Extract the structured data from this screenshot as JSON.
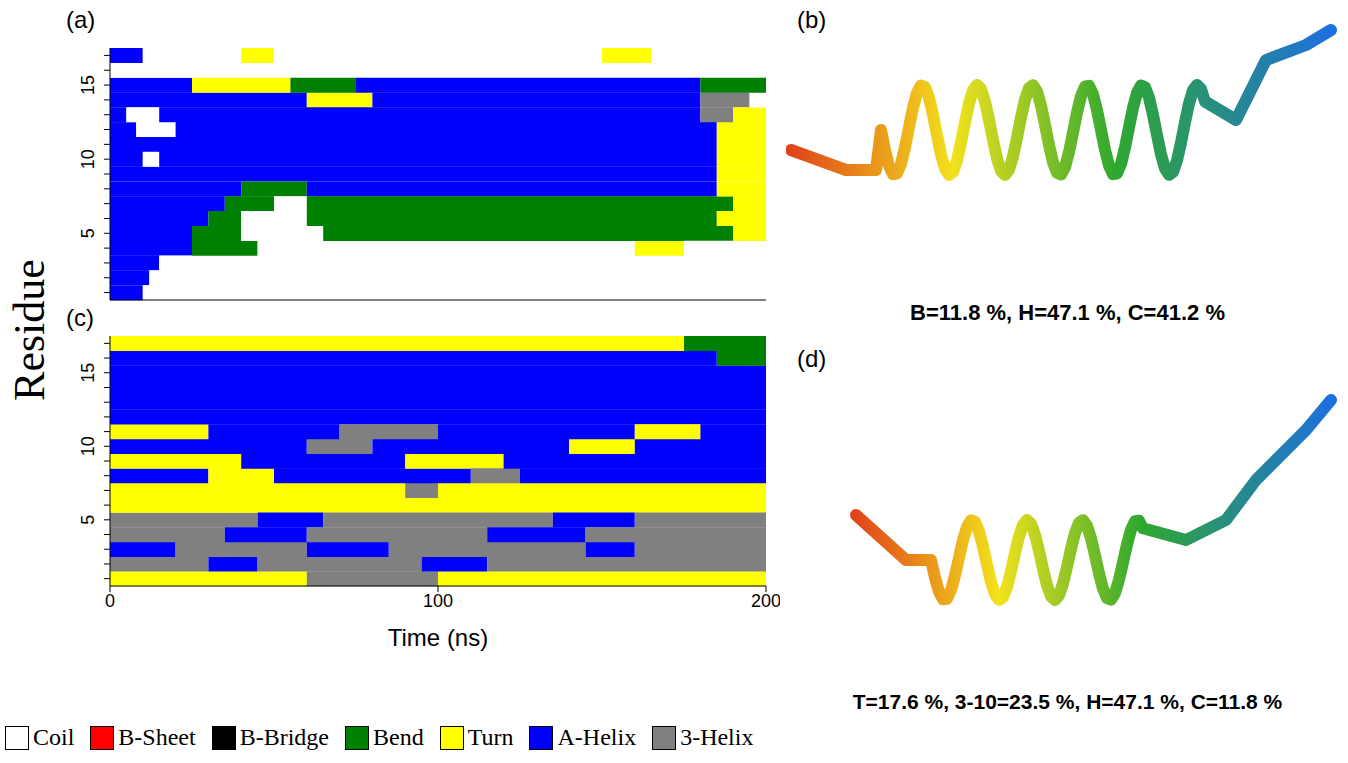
{
  "figure": {
    "y_label": "Residue",
    "x_label": "Time (ns)",
    "legend_items": [
      {
        "name": "Coil",
        "color": "#ffffff"
      },
      {
        "name": "B-Sheet",
        "color": "#ff0000"
      },
      {
        "name": "B-Bridge",
        "color": "#000000"
      },
      {
        "name": "Bend",
        "color": "#008000"
      },
      {
        "name": "Turn",
        "color": "#ffff00"
      },
      {
        "name": "A-Helix",
        "color": "#0000ff"
      },
      {
        "name": "3-Helix",
        "color": "#808080"
      }
    ]
  },
  "chart_data": [
    {
      "panel": "(a)",
      "type": "bar",
      "orientation": "horizontal",
      "stacked": true,
      "tick_labels": "y",
      "xlim": [
        0,
        200
      ],
      "categories": [
        null,
        null,
        null,
        null,
        5,
        null,
        null,
        null,
        null,
        10,
        null,
        null,
        null,
        null,
        15,
        null,
        null
      ],
      "yticks": [
        5,
        10,
        15
      ],
      "segments": [
        [
          {
            "state": "A-Helix",
            "length": 10
          },
          {
            "state": "Coil",
            "length": 190
          }
        ],
        [
          {
            "state": "A-Helix",
            "length": 12
          },
          {
            "state": "Coil",
            "length": 188
          }
        ],
        [
          {
            "state": "A-Helix",
            "length": 15
          },
          {
            "state": "Coil",
            "length": 185
          }
        ],
        [
          {
            "state": "A-Helix",
            "length": 25
          },
          {
            "state": "Bend",
            "length": 20
          },
          {
            "state": "Coil",
            "length": 115
          },
          {
            "state": "Turn",
            "length": 15
          },
          {
            "state": "Coil",
            "length": 25
          }
        ],
        [
          {
            "state": "A-Helix",
            "length": 25
          },
          {
            "state": "Bend",
            "length": 15
          },
          {
            "state": "Coil",
            "length": 25
          },
          {
            "state": "Bend",
            "length": 125
          },
          {
            "state": "Turn",
            "length": 10
          }
        ],
        [
          {
            "state": "A-Helix",
            "length": 30
          },
          {
            "state": "Bend",
            "length": 10
          },
          {
            "state": "Coil",
            "length": 20
          },
          {
            "state": "Bend",
            "length": 125
          },
          {
            "state": "Turn",
            "length": 15
          }
        ],
        [
          {
            "state": "A-Helix",
            "length": 35
          },
          {
            "state": "Bend",
            "length": 15
          },
          {
            "state": "Coil",
            "length": 10
          },
          {
            "state": "Bend",
            "length": 130
          },
          {
            "state": "Turn",
            "length": 10
          }
        ],
        [
          {
            "state": "A-Helix",
            "length": 40
          },
          {
            "state": "Bend",
            "length": 20
          },
          {
            "state": "A-Helix",
            "length": 125
          },
          {
            "state": "Turn",
            "length": 15
          }
        ],
        [
          {
            "state": "A-Helix",
            "length": 185
          },
          {
            "state": "Turn",
            "length": 15
          }
        ],
        [
          {
            "state": "A-Helix",
            "length": 10
          },
          {
            "state": "Coil",
            "length": 5
          },
          {
            "state": "A-Helix",
            "length": 170
          },
          {
            "state": "Turn",
            "length": 15
          }
        ],
        [
          {
            "state": "A-Helix",
            "length": 185
          },
          {
            "state": "Turn",
            "length": 15
          }
        ],
        [
          {
            "state": "A-Helix",
            "length": 8
          },
          {
            "state": "Coil",
            "length": 12
          },
          {
            "state": "A-Helix",
            "length": 165
          },
          {
            "state": "Turn",
            "length": 15
          }
        ],
        [
          {
            "state": "A-Helix",
            "length": 5
          },
          {
            "state": "Coil",
            "length": 10
          },
          {
            "state": "A-Helix",
            "length": 165
          },
          {
            "state": "3-Helix",
            "length": 10
          },
          {
            "state": "Turn",
            "length": 10
          }
        ],
        [
          {
            "state": "A-Helix",
            "length": 60
          },
          {
            "state": "Turn",
            "length": 20
          },
          {
            "state": "A-Helix",
            "length": 100
          },
          {
            "state": "3-Helix",
            "length": 15
          },
          {
            "state": "Coil",
            "length": 5
          }
        ],
        [
          {
            "state": "A-Helix",
            "length": 25
          },
          {
            "state": "Turn",
            "length": 30
          },
          {
            "state": "Bend",
            "length": 20
          },
          {
            "state": "A-Helix",
            "length": 105
          },
          {
            "state": "Bend",
            "length": 20
          }
        ],
        [
          {
            "state": "Coil",
            "length": 200
          }
        ],
        [
          {
            "state": "A-Helix",
            "length": 10
          },
          {
            "state": "Coil",
            "length": 30
          },
          {
            "state": "Turn",
            "length": 10
          },
          {
            "state": "Coil",
            "length": 100
          },
          {
            "state": "Turn",
            "length": 15
          },
          {
            "state": "Coil",
            "length": 35
          }
        ]
      ]
    },
    {
      "panel": "(c)",
      "type": "bar",
      "orientation": "horizontal",
      "stacked": true,
      "xlim": [
        0,
        200
      ],
      "xticks": [
        0,
        100,
        200
      ],
      "categories": [
        null,
        null,
        null,
        null,
        5,
        null,
        null,
        null,
        null,
        10,
        null,
        null,
        null,
        null,
        15,
        null,
        null
      ],
      "yticks": [
        5,
        10,
        15
      ],
      "segments": [
        [
          {
            "state": "Turn",
            "length": 60
          },
          {
            "state": "3-Helix",
            "length": 40
          },
          {
            "state": "Turn",
            "length": 100
          }
        ],
        [
          {
            "state": "3-Helix",
            "length": 30
          },
          {
            "state": "A-Helix",
            "length": 15
          },
          {
            "state": "3-Helix",
            "length": 50
          },
          {
            "state": "A-Helix",
            "length": 20
          },
          {
            "state": "3-Helix",
            "length": 85
          }
        ],
        [
          {
            "state": "A-Helix",
            "length": 20
          },
          {
            "state": "3-Helix",
            "length": 40
          },
          {
            "state": "A-Helix",
            "length": 25
          },
          {
            "state": "3-Helix",
            "length": 60
          },
          {
            "state": "A-Helix",
            "length": 15
          },
          {
            "state": "3-Helix",
            "length": 40
          }
        ],
        [
          {
            "state": "3-Helix",
            "length": 35
          },
          {
            "state": "A-Helix",
            "length": 25
          },
          {
            "state": "3-Helix",
            "length": 55
          },
          {
            "state": "A-Helix",
            "length": 30
          },
          {
            "state": "3-Helix",
            "length": 55
          }
        ],
        [
          {
            "state": "3-Helix",
            "length": 45
          },
          {
            "state": "A-Helix",
            "length": 20
          },
          {
            "state": "3-Helix",
            "length": 70
          },
          {
            "state": "A-Helix",
            "length": 25
          },
          {
            "state": "3-Helix",
            "length": 40
          }
        ],
        [
          {
            "state": "Turn",
            "length": 200
          }
        ],
        [
          {
            "state": "Turn",
            "length": 90
          },
          {
            "state": "3-Helix",
            "length": 10
          },
          {
            "state": "Turn",
            "length": 100
          }
        ],
        [
          {
            "state": "A-Helix",
            "length": 30
          },
          {
            "state": "Turn",
            "length": 20
          },
          {
            "state": "A-Helix",
            "length": 60
          },
          {
            "state": "3-Helix",
            "length": 15
          },
          {
            "state": "A-Helix",
            "length": 75
          }
        ],
        [
          {
            "state": "Turn",
            "length": 40
          },
          {
            "state": "A-Helix",
            "length": 50
          },
          {
            "state": "Turn",
            "length": 30
          },
          {
            "state": "A-Helix",
            "length": 80
          }
        ],
        [
          {
            "state": "A-Helix",
            "length": 60
          },
          {
            "state": "3-Helix",
            "length": 20
          },
          {
            "state": "A-Helix",
            "length": 60
          },
          {
            "state": "Turn",
            "length": 20
          },
          {
            "state": "A-Helix",
            "length": 40
          }
        ],
        [
          {
            "state": "Turn",
            "length": 30
          },
          {
            "state": "A-Helix",
            "length": 40
          },
          {
            "state": "3-Helix",
            "length": 30
          },
          {
            "state": "A-Helix",
            "length": 60
          },
          {
            "state": "Turn",
            "length": 20
          },
          {
            "state": "A-Helix",
            "length": 20
          }
        ],
        [
          {
            "state": "A-Helix",
            "length": 200
          }
        ],
        [
          {
            "state": "A-Helix",
            "length": 200
          }
        ],
        [
          {
            "state": "A-Helix",
            "length": 200
          }
        ],
        [
          {
            "state": "A-Helix",
            "length": 200
          }
        ],
        [
          {
            "state": "A-Helix",
            "length": 185
          },
          {
            "state": "Bend",
            "length": 15
          }
        ],
        [
          {
            "state": "Turn",
            "length": 175
          },
          {
            "state": "Bend",
            "length": 25
          }
        ]
      ]
    }
  ],
  "structures": [
    {
      "panel": "(b)",
      "text": "B=11.8 %, H=47.1 %, C=41.2 %"
    },
    {
      "panel": "(d)",
      "text": "T=17.6 %, 3-10=23.5 %, H=47.1 %, C=11.8 %"
    }
  ]
}
